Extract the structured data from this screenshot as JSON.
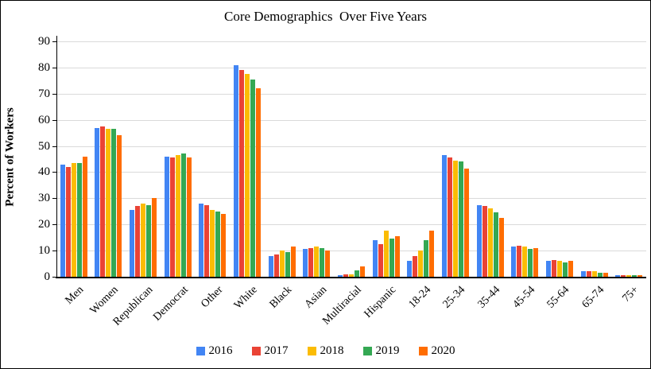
{
  "chart_data": {
    "type": "bar",
    "title": "Core Demographics  Over Five Years",
    "ylabel": "Percent of Workers",
    "xlabel": "",
    "ylim": [
      0,
      90
    ],
    "ytick_step": 10,
    "grid": true,
    "legend_position": "bottom",
    "categories": [
      "Men",
      "Women",
      "Republican",
      "Democrat",
      "Other",
      "White",
      "Black",
      "Asian",
      "Multiracial",
      "Hispanic",
      "18-24",
      "25-34",
      "35-44",
      "45-54",
      "55-64",
      "65-74",
      "75+"
    ],
    "series": [
      {
        "name": "2016",
        "color": "#4285F4",
        "values": [
          43,
          57,
          25.5,
          46,
          28,
          81,
          8,
          10.5,
          0.5,
          14,
          6,
          46.5,
          27.5,
          11.5,
          6,
          2,
          0.5
        ]
      },
      {
        "name": "2017",
        "color": "#EA4335",
        "values": [
          42,
          57.5,
          27,
          45.5,
          27.5,
          79,
          8.5,
          11,
          1,
          12.5,
          8,
          45.5,
          27,
          12,
          6.5,
          2,
          0.5
        ]
      },
      {
        "name": "2018",
        "color": "#FBBC04",
        "values": [
          43.5,
          56.5,
          28,
          46.5,
          25.5,
          77.5,
          10,
          11.5,
          1,
          17.5,
          10,
          44.5,
          26,
          11.5,
          6,
          2,
          0.5
        ]
      },
      {
        "name": "2019",
        "color": "#34A853",
        "values": [
          43.5,
          56.5,
          27.5,
          47,
          25,
          75.5,
          9.5,
          11,
          2.5,
          14.5,
          14,
          44,
          24.5,
          10.5,
          5.5,
          1.5,
          0.5
        ]
      },
      {
        "name": "2020",
        "color": "#FF6D01",
        "values": [
          46,
          54,
          30,
          45.5,
          24,
          72,
          11.5,
          10,
          4,
          15.5,
          17.5,
          41.5,
          22.5,
          11,
          6,
          1.5,
          0.5
        ]
      }
    ]
  },
  "colors": {
    "gridline": "#dadada",
    "axis": "#000000",
    "background": "#ffffff",
    "text": "#000000"
  }
}
